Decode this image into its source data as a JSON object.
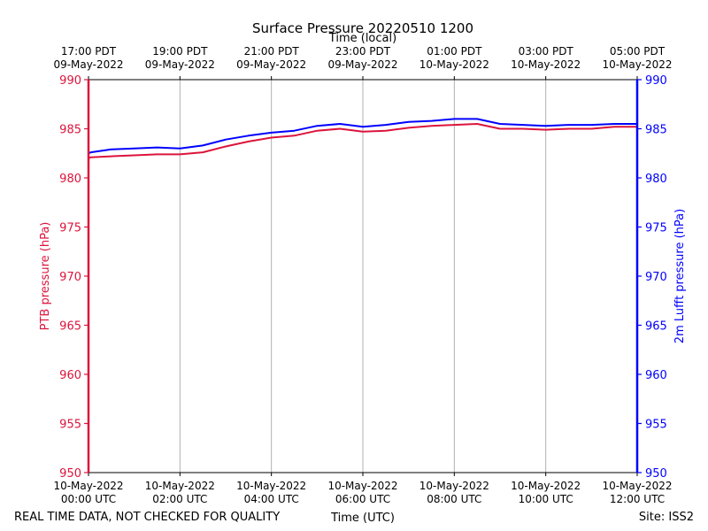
{
  "chart_data": {
    "type": "line",
    "title": "Surface Pressure 20220510 1200",
    "xlabel": "Time (UTC)",
    "x2label": "Time (local)",
    "ylabel_left": "PTB pressure (hPa)",
    "ylabel_right": "2m Lufft pressure (hPa)",
    "ylim": [
      950,
      990
    ],
    "yticks": [
      950,
      955,
      960,
      965,
      970,
      975,
      980,
      985,
      990
    ],
    "xlim": [
      0,
      12
    ],
    "xticks": [
      {
        "hour": 0,
        "date": "10-May-2022",
        "time": "00:00 UTC"
      },
      {
        "hour": 2,
        "date": "10-May-2022",
        "time": "02:00 UTC"
      },
      {
        "hour": 4,
        "date": "10-May-2022",
        "time": "04:00 UTC"
      },
      {
        "hour": 6,
        "date": "10-May-2022",
        "time": "06:00 UTC"
      },
      {
        "hour": 8,
        "date": "10-May-2022",
        "time": "08:00 UTC"
      },
      {
        "hour": 10,
        "date": "10-May-2022",
        "time": "10:00 UTC"
      },
      {
        "hour": 12,
        "date": "10-May-2022",
        "time": "12:00 UTC"
      }
    ],
    "x2ticks": [
      {
        "hour": 0,
        "time": "17:00 PDT",
        "date": "09-May-2022"
      },
      {
        "hour": 2,
        "time": "19:00 PDT",
        "date": "09-May-2022"
      },
      {
        "hour": 4,
        "time": "21:00 PDT",
        "date": "09-May-2022"
      },
      {
        "hour": 6,
        "time": "23:00 PDT",
        "date": "09-May-2022"
      },
      {
        "hour": 8,
        "time": "01:00 PDT",
        "date": "10-May-2022"
      },
      {
        "hour": 10,
        "time": "03:00 PDT",
        "date": "10-May-2022"
      },
      {
        "hour": 12,
        "time": "05:00 PDT",
        "date": "10-May-2022"
      }
    ],
    "grid": "vertical",
    "series": [
      {
        "name": "PTB pressure (hPa)",
        "color": "#dc143c",
        "x": [
          0,
          0.05,
          0.5,
          1,
          1.5,
          2,
          2.5,
          3,
          3.5,
          4,
          4.5,
          5,
          5.5,
          6,
          6.5,
          7,
          7.5,
          8,
          8.5,
          9,
          9.5,
          10,
          10.5,
          11,
          11.5,
          12
        ],
        "y": [
          982.0,
          982.1,
          982.2,
          982.3,
          982.4,
          982.4,
          982.6,
          983.2,
          983.7,
          984.1,
          984.3,
          984.8,
          985.0,
          984.7,
          984.8,
          985.1,
          985.3,
          985.4,
          985.5,
          985.0,
          985.0,
          984.9,
          985.0,
          985.0,
          985.2,
          985.2
        ]
      },
      {
        "name": "2m Lufft pressure (hPa)",
        "color": "#0000ff",
        "x": [
          0,
          0.05,
          0.5,
          1,
          1.5,
          2,
          2.5,
          3,
          3.5,
          4,
          4.5,
          5,
          5.5,
          6,
          6.5,
          7,
          7.5,
          8,
          8.5,
          9,
          9.5,
          10,
          10.5,
          11,
          11.5,
          12
        ],
        "y": [
          982.5,
          982.6,
          982.9,
          983.0,
          983.1,
          983.0,
          983.3,
          983.9,
          984.3,
          984.6,
          984.8,
          985.3,
          985.5,
          985.2,
          985.4,
          985.7,
          985.8,
          986.0,
          986.0,
          985.5,
          985.4,
          985.3,
          985.4,
          985.4,
          985.5,
          985.5
        ]
      }
    ],
    "colors": {
      "left_axis": "#dc143c",
      "right_axis": "#0000ff",
      "grid": "#b0b0b0"
    }
  },
  "footer": {
    "left": "REAL TIME DATA, NOT CHECKED FOR QUALITY",
    "right": "Site: ISS2"
  }
}
